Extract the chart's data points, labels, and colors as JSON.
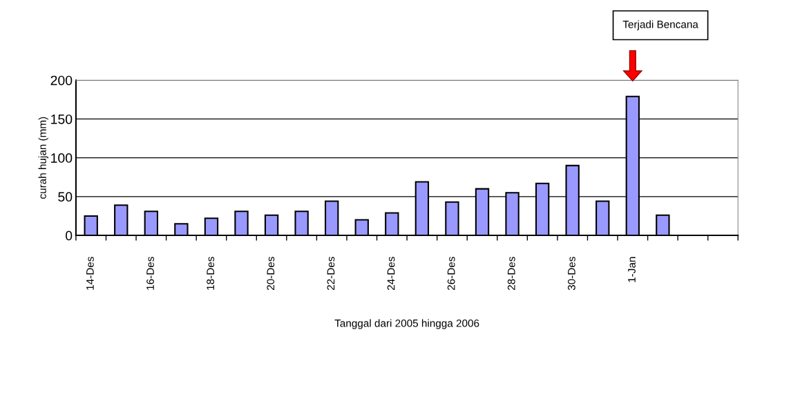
{
  "chart_data": {
    "type": "bar",
    "categories": [
      "14-Des",
      null,
      "16-Des",
      null,
      "18-Des",
      null,
      "20-Des",
      null,
      "22-Des",
      null,
      "24-Des",
      null,
      "26-Des",
      null,
      "28-Des",
      null,
      "30-Des",
      null,
      "1-Jan",
      null,
      null,
      null
    ],
    "values": [
      25,
      39,
      31,
      15,
      22,
      31,
      26,
      31,
      44,
      20,
      29,
      69,
      43,
      60,
      55,
      67,
      90,
      44,
      179,
      26,
      null,
      null
    ],
    "color": "#9999ff",
    "xlabel": "Tanggal dari 2005 hingga 2006",
    "ylabel": "curah hujan (mm)",
    "ylim": [
      0,
      200
    ],
    "yticks": [
      0,
      50,
      100,
      150,
      200
    ],
    "grid": "y",
    "annotations": [
      "Terjadi Bencana"
    ]
  }
}
